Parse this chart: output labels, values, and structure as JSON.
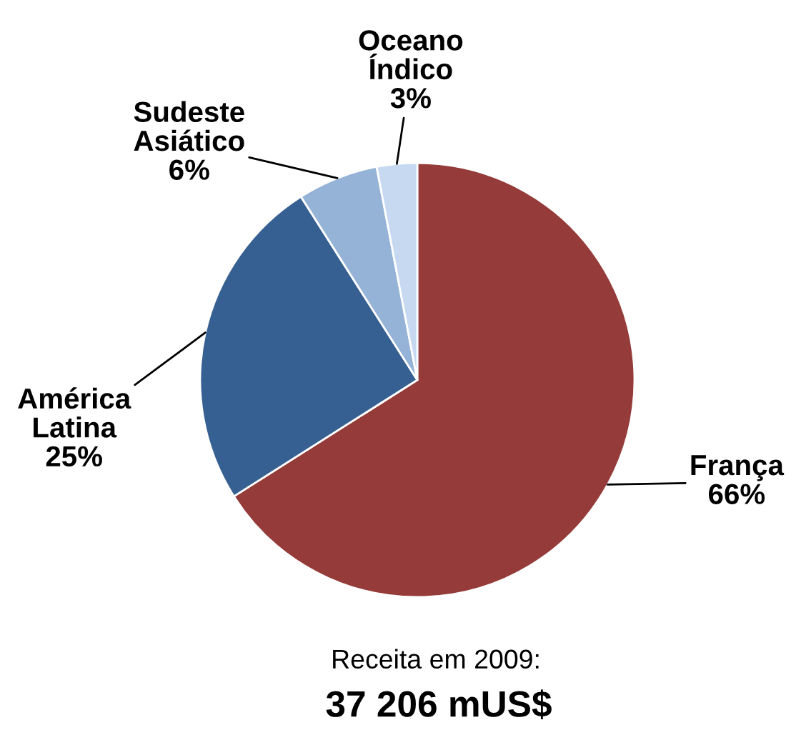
{
  "chart_data": {
    "type": "pie",
    "categories": [
      "França",
      "América Latina",
      "Sudeste Asiático",
      "Oceano Índico"
    ],
    "values": [
      66,
      25,
      6,
      3
    ],
    "colors": [
      "#953b3a",
      "#376092",
      "#95b3d7",
      "#c6d9f1"
    ],
    "value_labels": [
      "66%",
      "25%",
      "6%",
      "3%"
    ],
    "annotations": [
      "Receita em 2009:",
      "37 206 mUS$"
    ]
  }
}
